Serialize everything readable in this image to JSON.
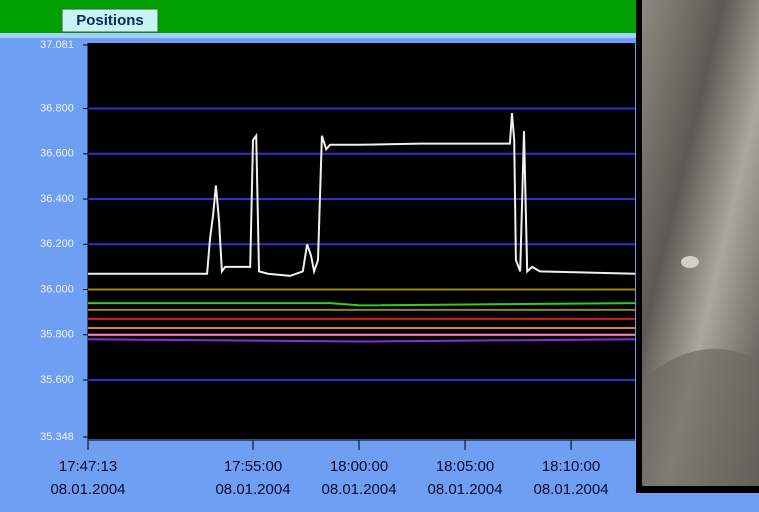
{
  "chart_data": {
    "type": "line",
    "title": "Positions",
    "ylim": [
      35.348,
      37.081
    ],
    "yticks": [
      35.348,
      {
        "value": 35.6,
        "label": "35.600"
      },
      {
        "value": 35.8,
        "label": "35.800"
      },
      {
        "value": 36.0,
        "label": "36.000"
      },
      {
        "value": 36.2,
        "label": "36.200"
      },
      {
        "value": 36.4,
        "label": "36.400"
      },
      {
        "value": 36.6,
        "label": "36.600"
      },
      {
        "value": 36.8,
        "label": "36.800"
      },
      37.081
    ],
    "xlim": [
      "17:47:13",
      "18:13:01"
    ],
    "xticks": [
      {
        "value": "17:47:13",
        "date": "08.01.2004"
      },
      {
        "value": "17:55:00",
        "date": "08.01.2004"
      },
      {
        "value": "18:00:00",
        "date": "08.01.2004"
      },
      {
        "value": "18:05:00",
        "date": "08.01.2004"
      },
      {
        "value": "18:10:00",
        "date": "08.01.2004"
      }
    ],
    "grid": true,
    "series": [
      {
        "color": "#9a8a10",
        "x": [
          "17:47:13",
          "18:13:01"
        ],
        "values": [
          36.0,
          36.0
        ]
      },
      {
        "color": "#33cc22",
        "x": [
          "17:47:13",
          "17:58:38",
          "18:00:03",
          "18:13:01"
        ],
        "values": [
          35.94,
          35.94,
          35.93,
          35.94
        ]
      },
      {
        "color": "#8a8a20",
        "x": [
          "17:47:13",
          "18:13:01"
        ],
        "values": [
          35.91,
          35.91
        ]
      },
      {
        "color": "#cc2020",
        "x": [
          "17:47:13",
          "18:13:01"
        ],
        "values": [
          35.87,
          35.87
        ]
      },
      {
        "color": "#e08020",
        "x": [
          "17:47:13",
          "18:13:01"
        ],
        "values": [
          35.83,
          35.83
        ]
      },
      {
        "color": "#ff88aa",
        "x": [
          "17:47:13",
          "18:13:01"
        ],
        "values": [
          35.8,
          35.8
        ]
      },
      {
        "color": "#8a2be2",
        "x": [
          "17:47:13",
          "18:00:03",
          "18:13:01"
        ],
        "values": [
          35.78,
          35.77,
          35.78
        ]
      },
      {
        "color": "#f0f0f0",
        "x": [
          "17:47:13",
          "17:52:50",
          "17:52:58",
          "17:53:07",
          "17:53:15",
          "17:53:24",
          "17:53:32",
          "17:53:41",
          "17:54:52",
          "17:55:00",
          "17:55:09",
          "17:55:17",
          "17:55:42",
          "17:56:45",
          "17:57:21",
          "17:57:33",
          "17:57:44",
          "17:57:53",
          "17:58:04",
          "17:58:15",
          "17:58:27",
          "17:58:38",
          "18:00:03",
          "18:02:53",
          "18:07:07",
          "18:07:13",
          "18:07:19",
          "18:07:24",
          "18:07:36",
          "18:07:47",
          "18:07:56",
          "18:08:10",
          "18:08:32",
          "18:13:01"
        ],
        "values": [
          36.07,
          36.07,
          36.22,
          36.33,
          36.46,
          36.3,
          36.08,
          36.1,
          36.1,
          36.66,
          36.68,
          36.08,
          36.07,
          36.06,
          36.08,
          36.2,
          36.15,
          36.08,
          36.13,
          36.68,
          36.62,
          36.64,
          36.64,
          36.645,
          36.645,
          36.78,
          36.66,
          36.13,
          36.08,
          36.7,
          36.08,
          36.1,
          36.08,
          36.07
        ]
      }
    ]
  }
}
